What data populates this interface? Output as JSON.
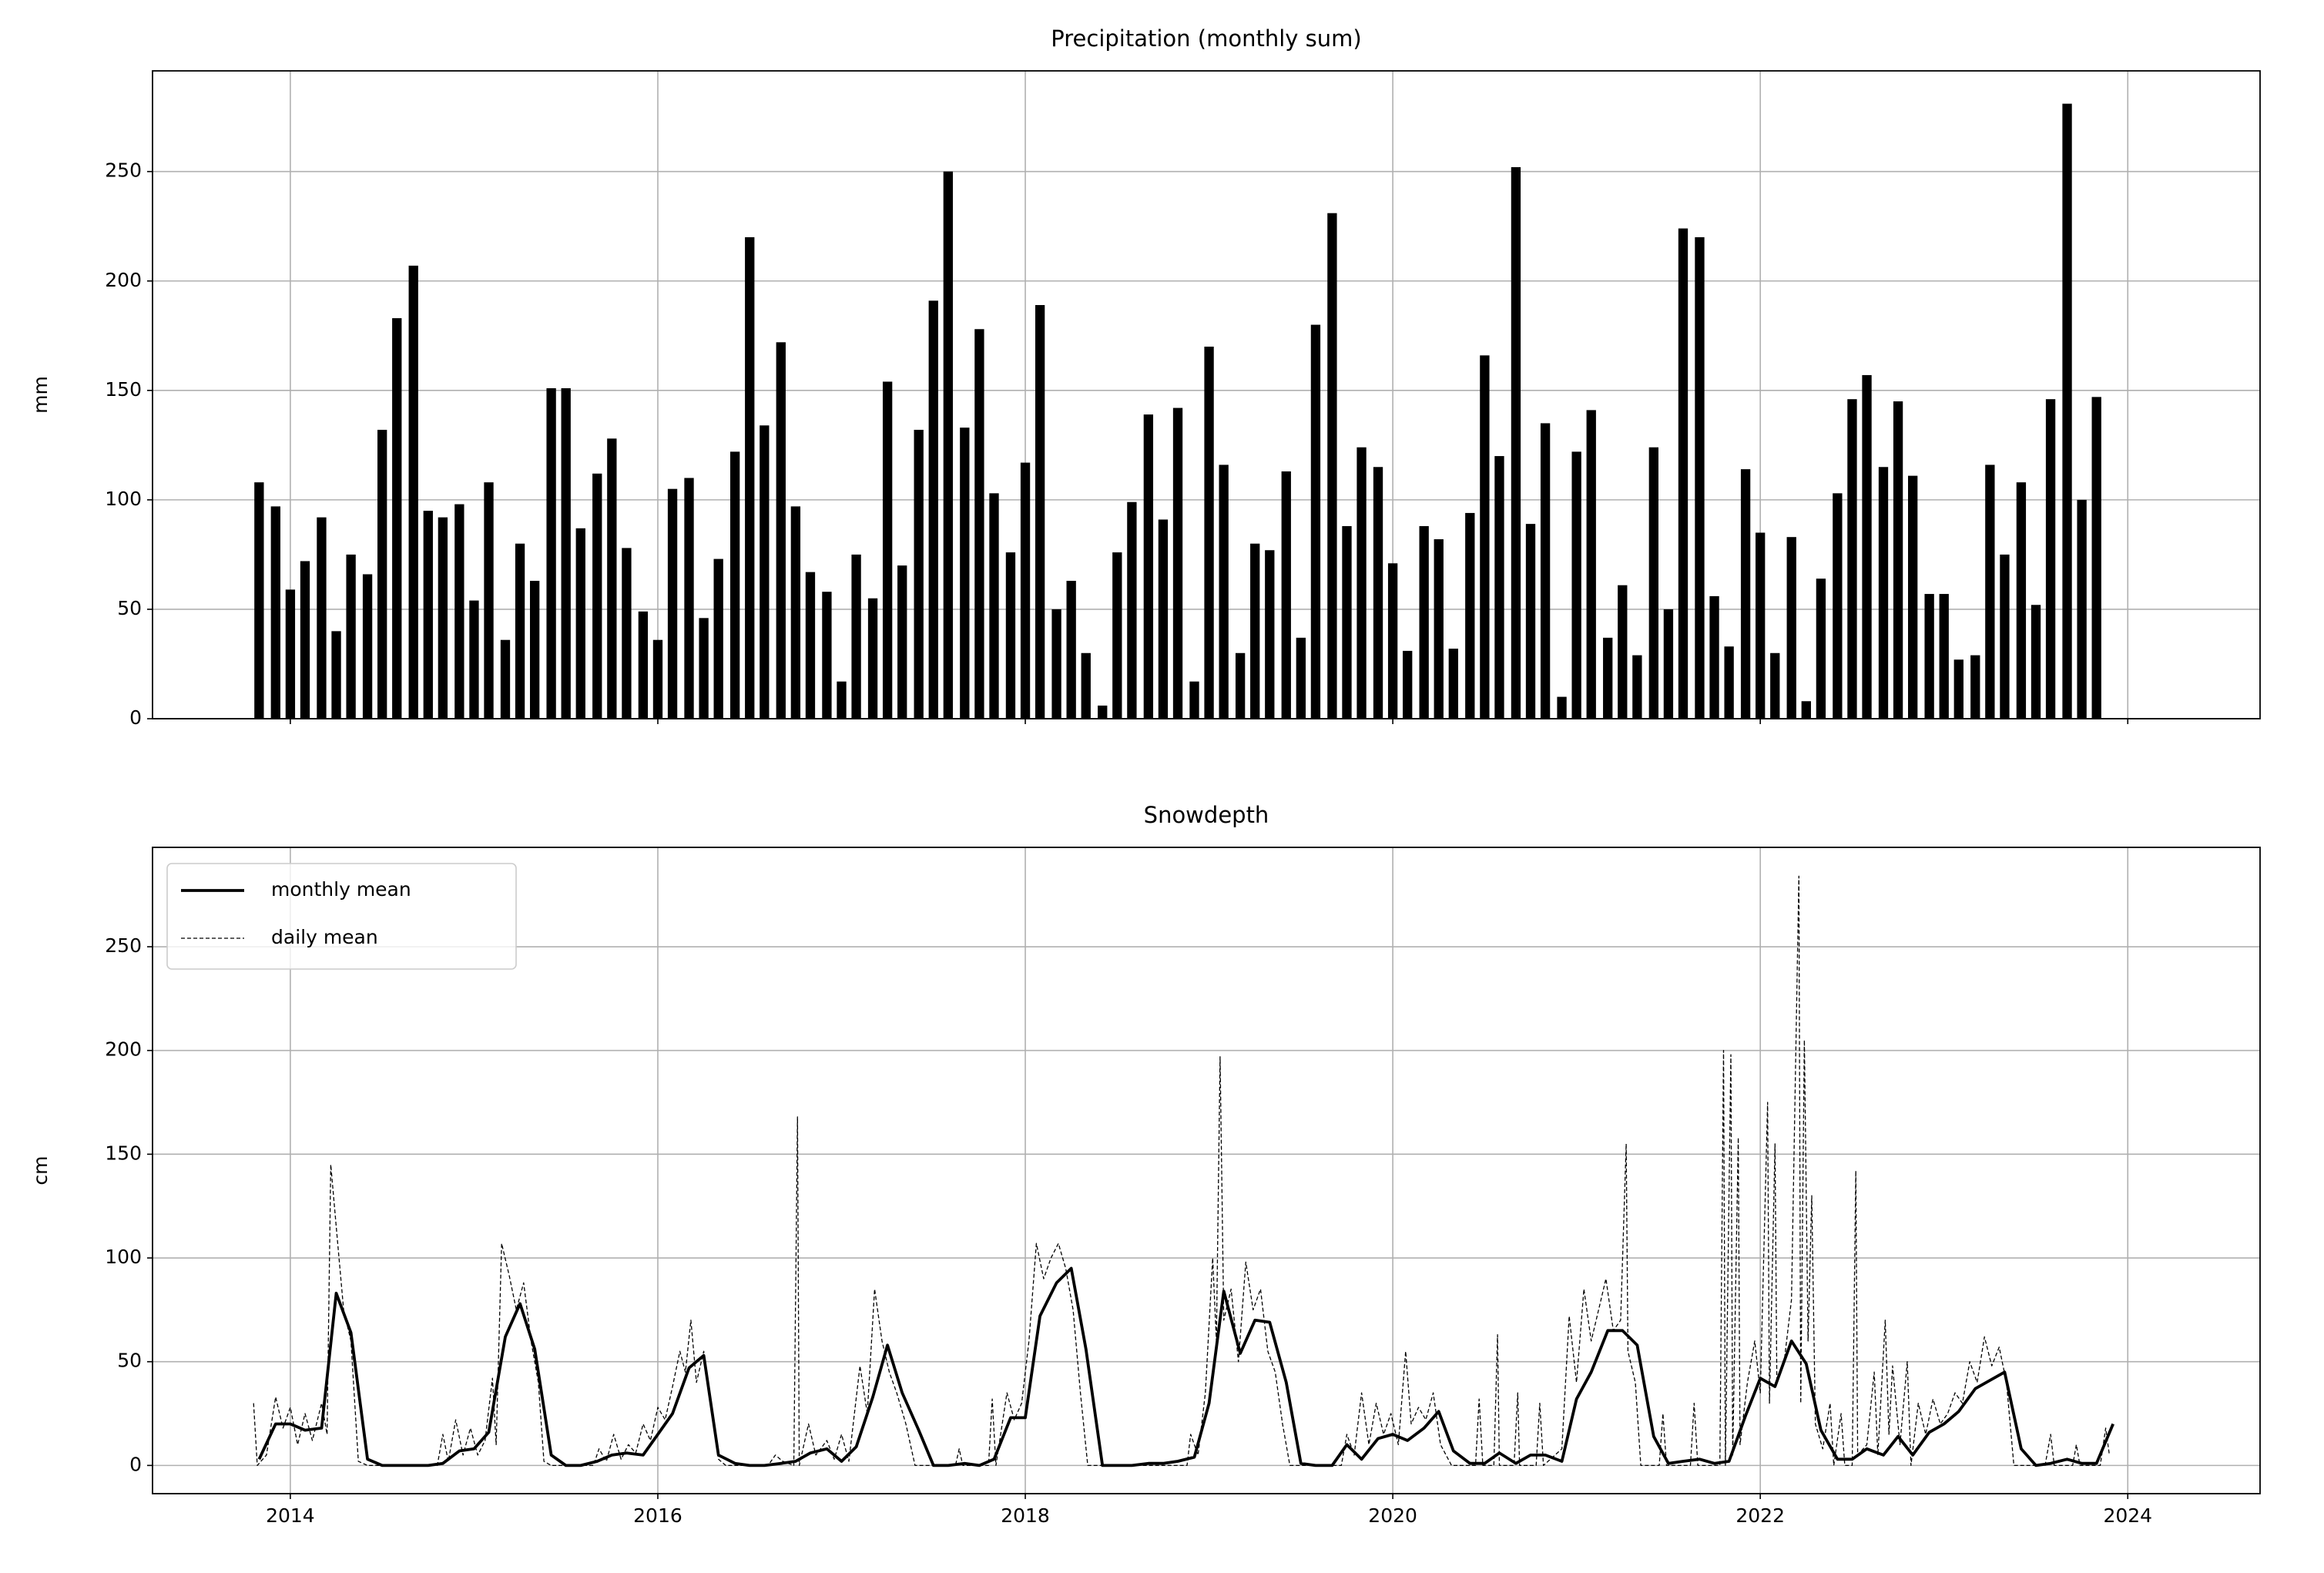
{
  "chart_data": [
    {
      "type": "bar",
      "title": "Precipitation (monthly sum)",
      "ylabel": "mm",
      "color": "#000000",
      "grid": true,
      "xlim": [
        2013.25,
        2024.72
      ],
      "xticks": [
        2014,
        2016,
        2018,
        2020,
        2022,
        2024
      ],
      "ylim": [
        0,
        296
      ],
      "yticks": [
        0,
        50,
        100,
        150,
        200,
        250
      ],
      "x": [
        2013.83,
        2013.92,
        2014,
        2014.08,
        2014.17,
        2014.25,
        2014.33,
        2014.42,
        2014.5,
        2014.58,
        2014.67,
        2014.75,
        2014.83,
        2014.92,
        2015,
        2015.08,
        2015.17,
        2015.25,
        2015.33,
        2015.42,
        2015.5,
        2015.58,
        2015.67,
        2015.75,
        2015.83,
        2015.92,
        2016,
        2016.08,
        2016.17,
        2016.25,
        2016.33,
        2016.42,
        2016.5,
        2016.58,
        2016.67,
        2016.75,
        2016.83,
        2016.92,
        2017,
        2017.08,
        2017.17,
        2017.25,
        2017.33,
        2017.42,
        2017.5,
        2017.58,
        2017.67,
        2017.75,
        2017.83,
        2017.92,
        2018,
        2018.08,
        2018.17,
        2018.25,
        2018.33,
        2018.42,
        2018.5,
        2018.58,
        2018.67,
        2018.75,
        2018.83,
        2018.92,
        2019,
        2019.08,
        2019.17,
        2019.25,
        2019.33,
        2019.42,
        2019.5,
        2019.58,
        2019.67,
        2019.75,
        2019.83,
        2019.92,
        2020,
        2020.08,
        2020.17,
        2020.25,
        2020.33,
        2020.42,
        2020.5,
        2020.58,
        2020.67,
        2020.75,
        2020.83,
        2020.92,
        2021,
        2021.08,
        2021.17,
        2021.25,
        2021.33,
        2021.42,
        2021.5,
        2021.58,
        2021.67,
        2021.75,
        2021.83,
        2021.92,
        2022,
        2022.08,
        2022.17,
        2022.25,
        2022.33,
        2022.42,
        2022.5,
        2022.58,
        2022.67,
        2022.75,
        2022.83,
        2022.92,
        2023,
        2023.08,
        2023.17,
        2023.25,
        2023.33,
        2023.42,
        2023.5,
        2023.58,
        2023.67,
        2023.75,
        2023.83
      ],
      "values": [
        108,
        97,
        59,
        72,
        92,
        40,
        75,
        66,
        132,
        183,
        207,
        95,
        92,
        98,
        54,
        108,
        36,
        80,
        63,
        151,
        151,
        87,
        112,
        128,
        78,
        49,
        36,
        105,
        110,
        46,
        73,
        122,
        220,
        134,
        172,
        97,
        67,
        58,
        17,
        75,
        55,
        154,
        70,
        132,
        191,
        250,
        133,
        178,
        103,
        76,
        117,
        189,
        50,
        63,
        30,
        6,
        76,
        99,
        139,
        91,
        142,
        17,
        170,
        116,
        30,
        80,
        77,
        113,
        37,
        180,
        231,
        88,
        124,
        115,
        71,
        31,
        88,
        82,
        32,
        94,
        166,
        120,
        252,
        89,
        135,
        10,
        122,
        141,
        37,
        61,
        29,
        124,
        50,
        224,
        220,
        56,
        33,
        114,
        85,
        30,
        83,
        8,
        64,
        103,
        146,
        157,
        115,
        145,
        111,
        57,
        57,
        27,
        29,
        116,
        75,
        108,
        52,
        146,
        281,
        100,
        147
      ]
    },
    {
      "type": "line",
      "title": "Snowdepth",
      "ylabel": "cm",
      "grid": true,
      "legend": "upper left",
      "xlim": [
        2013.25,
        2024.72
      ],
      "xticks": [
        2014,
        2016,
        2018,
        2020,
        2022,
        2024
      ],
      "ylim": [
        -13.6,
        297.9
      ],
      "yticks": [
        0,
        50,
        100,
        150,
        200,
        250
      ],
      "series": [
        {
          "name": "monthly mean",
          "color": "#000000",
          "style": "solid",
          "x": [
            2013.83,
            2013.92,
            2014,
            2014.08,
            2014.17,
            2014.25,
            2014.33,
            2014.42,
            2014.5,
            2014.58,
            2014.67,
            2014.75,
            2014.83,
            2014.92,
            2015,
            2015.08,
            2015.17,
            2015.25,
            2015.33,
            2015.42,
            2015.5,
            2015.58,
            2015.67,
            2015.75,
            2015.83,
            2015.92,
            2016,
            2016.08,
            2016.17,
            2016.25,
            2016.33,
            2016.42,
            2016.5,
            2016.58,
            2016.67,
            2016.75,
            2016.83,
            2016.92,
            2017,
            2017.08,
            2017.17,
            2017.25,
            2017.33,
            2017.42,
            2017.5,
            2017.58,
            2017.67,
            2017.75,
            2017.83,
            2017.92,
            2018,
            2018.08,
            2018.17,
            2018.25,
            2018.33,
            2018.42,
            2018.5,
            2018.58,
            2018.67,
            2018.75,
            2018.83,
            2018.92,
            2019,
            2019.08,
            2019.17,
            2019.25,
            2019.33,
            2019.42,
            2019.5,
            2019.58,
            2019.67,
            2019.75,
            2019.83,
            2019.92,
            2020,
            2020.08,
            2020.17,
            2020.25,
            2020.33,
            2020.42,
            2020.5,
            2020.58,
            2020.67,
            2020.75,
            2020.83,
            2020.92,
            2021,
            2021.08,
            2021.17,
            2021.25,
            2021.33,
            2021.42,
            2021.5,
            2021.58,
            2021.67,
            2021.75,
            2021.83,
            2021.92,
            2022,
            2022.08,
            2022.17,
            2022.25,
            2022.33,
            2022.42,
            2022.5,
            2022.58,
            2022.67,
            2022.75,
            2022.83,
            2022.92,
            2023,
            2023.08,
            2023.17,
            2023.25,
            2023.33,
            2023.42,
            2023.5,
            2023.58,
            2023.67,
            2023.75,
            2023.83,
            2023.92
          ],
          "values": [
            3,
            20,
            20,
            17,
            18,
            83,
            64,
            3,
            0,
            0,
            0,
            0,
            1,
            7,
            8,
            16,
            62,
            78,
            56,
            5,
            0,
            0,
            2,
            5,
            6,
            5,
            15,
            25,
            47,
            53,
            5,
            1,
            0,
            0,
            1,
            2,
            6,
            8,
            2,
            9,
            33,
            58,
            35,
            17,
            0,
            0,
            1,
            0,
            3,
            23,
            23,
            72,
            88,
            95,
            56,
            0,
            0,
            0,
            1,
            1,
            2,
            4,
            30,
            84,
            54,
            70,
            69,
            40,
            1,
            0,
            0,
            10,
            3,
            13,
            15,
            12,
            18,
            26,
            7,
            1,
            1,
            6,
            1,
            5,
            5,
            2,
            32,
            45,
            65,
            65,
            58,
            14,
            1,
            2,
            3,
            1,
            2,
            24,
            42,
            38,
            60,
            49,
            17,
            3,
            3,
            8,
            5,
            14,
            5,
            16,
            20,
            26,
            37,
            41,
            45,
            8,
            0,
            1,
            3,
            1,
            1,
            20
          ]
        },
        {
          "name": "daily mean",
          "color": "#000000",
          "style": "dashed",
          "x": [
            2013.8,
            2013.82,
            2013.87,
            2013.92,
            2013.96,
            2014,
            2014.04,
            2014.08,
            2014.12,
            2014.17,
            2014.2,
            2014.22,
            2014.25,
            2014.29,
            2014.33,
            2014.37,
            2014.42,
            2014.8,
            2014.83,
            2014.86,
            2014.9,
            2014.94,
            2014.98,
            2015.02,
            2015.06,
            2015.1,
            2015.12,
            2015.15,
            2015.19,
            2015.23,
            2015.27,
            2015.31,
            2015.35,
            2015.38,
            2015.42,
            2015.65,
            2015.68,
            2015.72,
            2015.76,
            2015.8,
            2015.84,
            2015.88,
            2015.92,
            2015.96,
            2016,
            2016.04,
            2016.08,
            2016.12,
            2016.15,
            2016.18,
            2016.21,
            2016.25,
            2016.29,
            2016.33,
            2016.37,
            2016.6,
            2016.64,
            2016.68,
            2016.74,
            2016.76,
            2016.77,
            2016.82,
            2016.86,
            2016.92,
            2016.96,
            2017,
            2017.04,
            2017.1,
            2017.14,
            2017.18,
            2017.22,
            2017.26,
            2017.3,
            2017.35,
            2017.4,
            2017.62,
            2017.64,
            2017.66,
            2017.8,
            2017.82,
            2017.84,
            2017.9,
            2017.94,
            2017.98,
            2018.02,
            2018.06,
            2018.1,
            2018.14,
            2018.18,
            2018.22,
            2018.26,
            2018.3,
            2018.34,
            2018.88,
            2018.9,
            2018.94,
            2018.98,
            2019.02,
            2019.04,
            2019.06,
            2019.08,
            2019.12,
            2019.16,
            2019.2,
            2019.24,
            2019.28,
            2019.32,
            2019.36,
            2019.4,
            2019.44,
            2019.72,
            2019.75,
            2019.79,
            2019.83,
            2019.87,
            2019.91,
            2019.95,
            2019.99,
            2020.03,
            2020.07,
            2020.1,
            2020.14,
            2020.18,
            2020.22,
            2020.26,
            2020.32,
            2020.45,
            2020.47,
            2020.49,
            2020.55,
            2020.57,
            2020.58,
            2020.66,
            2020.68,
            2020.69,
            2020.78,
            2020.8,
            2020.82,
            2020.92,
            2020.96,
            2021,
            2021.04,
            2021.08,
            2021.12,
            2021.16,
            2021.2,
            2021.24,
            2021.27,
            2021.28,
            2021.32,
            2021.35,
            2021.45,
            2021.47,
            2021.49,
            2021.62,
            2021.64,
            2021.66,
            2021.78,
            2021.8,
            2021.81,
            2021.84,
            2021.85,
            2021.88,
            2021.89,
            2021.93,
            2021.97,
            2022,
            2022.04,
            2022.05,
            2022.08,
            2022.09,
            2022.13,
            2022.17,
            2022.21,
            2022.22,
            2022.24,
            2022.26,
            2022.28,
            2022.3,
            2022.34,
            2022.38,
            2022.4,
            2022.44,
            2022.46,
            2022.5,
            2022.52,
            2022.53,
            2022.58,
            2022.62,
            2022.64,
            2022.68,
            2022.7,
            2022.72,
            2022.76,
            2022.8,
            2022.82,
            2022.86,
            2022.9,
            2022.94,
            2022.98,
            2023.02,
            2023.06,
            2023.1,
            2023.14,
            2023.18,
            2023.22,
            2023.26,
            2023.3,
            2023.34,
            2023.38,
            2023.55,
            2023.58,
            2023.6,
            2023.7,
            2023.72,
            2023.74,
            2023.85,
            2023.88,
            2023.9
          ],
          "values": [
            30,
            0,
            5,
            33,
            18,
            28,
            10,
            25,
            12,
            30,
            15,
            145,
            115,
            75,
            60,
            2,
            0,
            0,
            15,
            2,
            22,
            5,
            18,
            5,
            12,
            42,
            10,
            107,
            92,
            75,
            88,
            60,
            40,
            2,
            0,
            0,
            8,
            2,
            15,
            3,
            10,
            6,
            20,
            12,
            28,
            22,
            38,
            55,
            45,
            70,
            40,
            55,
            30,
            3,
            0,
            0,
            5,
            2,
            0,
            168,
            0,
            20,
            5,
            12,
            3,
            15,
            2,
            48,
            25,
            85,
            60,
            45,
            35,
            20,
            0,
            0,
            8,
            0,
            0,
            32,
            0,
            35,
            22,
            30,
            60,
            107,
            90,
            100,
            107,
            95,
            75,
            35,
            0,
            0,
            15,
            5,
            35,
            100,
            60,
            197,
            70,
            85,
            50,
            98,
            75,
            85,
            55,
            45,
            20,
            0,
            0,
            15,
            5,
            35,
            10,
            30,
            15,
            25,
            10,
            55,
            20,
            28,
            22,
            35,
            10,
            0,
            0,
            32,
            0,
            0,
            63,
            0,
            0,
            35,
            0,
            0,
            30,
            0,
            8,
            72,
            40,
            85,
            60,
            75,
            90,
            65,
            70,
            155,
            55,
            40,
            0,
            0,
            25,
            0,
            0,
            30,
            0,
            0,
            200,
            0,
            198,
            5,
            158,
            10,
            40,
            60,
            35,
            175,
            30,
            155,
            40,
            50,
            80,
            284,
            30,
            205,
            60,
            130,
            20,
            8,
            30,
            0,
            25,
            0,
            0,
            142,
            5,
            10,
            45,
            5,
            70,
            15,
            48,
            10,
            50,
            0,
            30,
            15,
            32,
            20,
            25,
            35,
            30,
            50,
            40,
            62,
            48,
            57,
            40,
            0,
            0,
            15,
            0,
            0,
            10,
            0,
            0,
            18,
            5
          ]
        }
      ]
    }
  ]
}
